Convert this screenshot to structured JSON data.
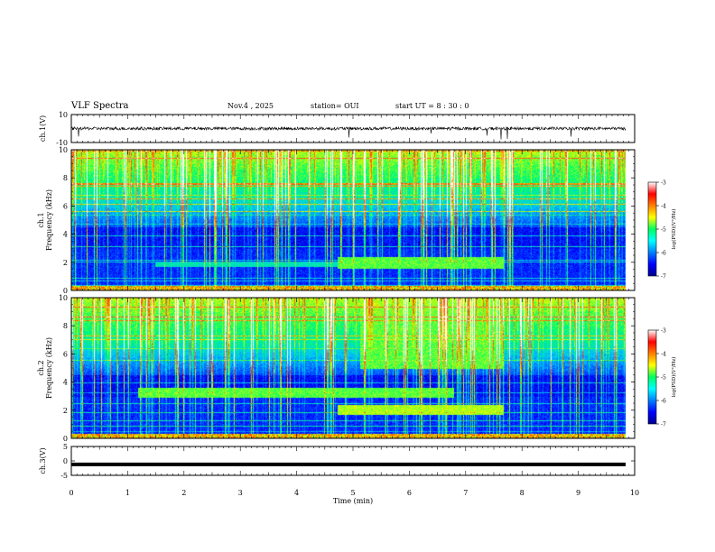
{
  "header": {
    "title": "VLF Spectra",
    "date": "Nov.4 , 2025",
    "station": "station= OUI",
    "start": "start UT = 8 : 30 : 0"
  },
  "chart_data": [
    {
      "type": "line",
      "name": "waveform-ch1",
      "ylabel": "ch.1(V)",
      "ylim": [
        -10,
        10
      ],
      "yticks": [
        "10",
        "-10"
      ],
      "baseline": 0,
      "xlim": [
        0,
        10
      ]
    },
    {
      "type": "heatmap",
      "name": "spectrogram-ch1",
      "ylabel": "ch.1\nFrequency (kHz)",
      "ylabel_line1": "ch.1",
      "ylabel_line2": "Frequency (kHz)",
      "ylim": [
        0,
        10
      ],
      "yticks": [
        "0",
        "2",
        "4",
        "6",
        "8",
        "10"
      ],
      "xlim": [
        0,
        10
      ],
      "colorbar": {
        "label": "log(PSD)(V²/Hz)",
        "ticks": [
          "-3",
          "-4",
          "-5",
          "-6",
          "-7"
        ],
        "range": [
          -7,
          -3
        ]
      },
      "bands": [
        {
          "f_lo": 1.6,
          "f_hi": 2.4,
          "t_start": 4.8,
          "t_end": 7.8,
          "level": 0.55
        },
        {
          "f_lo": 1.7,
          "f_hi": 2.0,
          "t_start": 1.5,
          "t_end": 4.8,
          "level": 0.42
        }
      ]
    },
    {
      "type": "heatmap",
      "name": "spectrogram-ch2",
      "ylabel_line1": "ch.2",
      "ylabel_line2": "Frequency (kHz)",
      "ylim": [
        0,
        10
      ],
      "yticks": [
        "0",
        "2",
        "4",
        "6",
        "8",
        "10"
      ],
      "xlim": [
        0,
        10
      ],
      "colorbar": {
        "label": "log(PSD)(V²/Hz)",
        "ticks": [
          "-3",
          "-4",
          "-5",
          "-6",
          "-7"
        ],
        "range": [
          -7,
          -3
        ]
      },
      "bands": [
        {
          "f_lo": 2.9,
          "f_hi": 3.6,
          "t_start": 1.2,
          "t_end": 6.9,
          "level": 0.55
        },
        {
          "f_lo": 1.7,
          "f_hi": 2.4,
          "t_start": 4.8,
          "t_end": 7.8,
          "level": 0.6
        },
        {
          "f_lo": 5.0,
          "f_hi": 10.0,
          "t_start": 5.2,
          "t_end": 7.8,
          "level": 0.55
        }
      ]
    },
    {
      "type": "line",
      "name": "waveform-ch3",
      "ylabel": "ch.3(V)",
      "ylim": [
        -5,
        5
      ],
      "yticks": [
        "5",
        "0",
        "-5"
      ],
      "baseline": -1.2,
      "xlim": [
        0,
        10
      ],
      "xlabel": "Time (min)",
      "xticks": [
        "0",
        "1",
        "2",
        "3",
        "4",
        "5",
        "6",
        "7",
        "8",
        "9",
        "10"
      ]
    }
  ]
}
